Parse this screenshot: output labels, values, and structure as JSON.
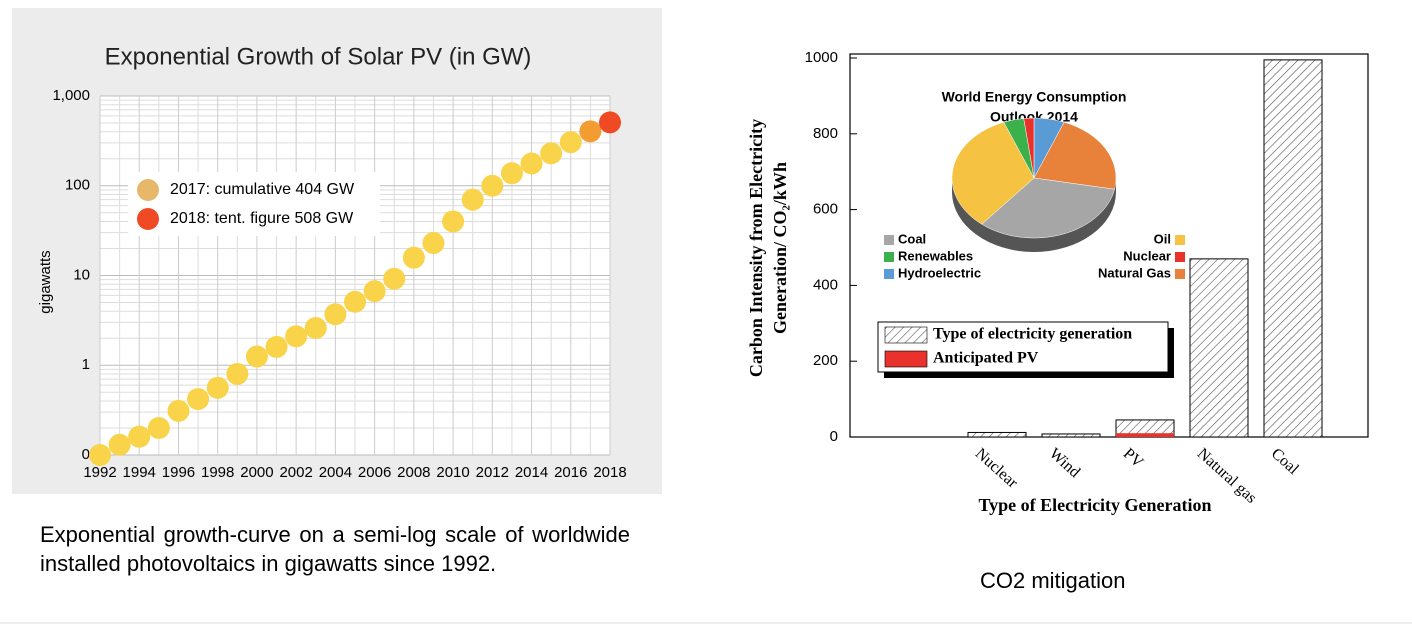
{
  "chart_data": [
    {
      "type": "scatter",
      "title": "Exponential Growth of Solar PV (in GW)",
      "ylabel": "gigawatts",
      "x": [
        1992,
        1993,
        1994,
        1995,
        1996,
        1997,
        1998,
        1999,
        2000,
        2001,
        2002,
        2003,
        2004,
        2005,
        2006,
        2007,
        2008,
        2009,
        2010,
        2011,
        2012,
        2013,
        2014,
        2015,
        2016,
        2017,
        2018
      ],
      "values": [
        0.1,
        0.13,
        0.16,
        0.2,
        0.31,
        0.42,
        0.56,
        0.8,
        1.25,
        1.6,
        2.1,
        2.6,
        3.7,
        5.1,
        6.7,
        9.2,
        15.8,
        23,
        40,
        70,
        100,
        138,
        177,
        230,
        306,
        404,
        508
      ],
      "point_colors": [
        "#f9d44a",
        "#f9d44a",
        "#f9d44a",
        "#f9d44a",
        "#f9d44a",
        "#f9d44a",
        "#f9d44a",
        "#f9d44a",
        "#f9d44a",
        "#f9d44a",
        "#f9d44a",
        "#f9d44a",
        "#f9d44a",
        "#f9d44a",
        "#f9d44a",
        "#f9d44a",
        "#f9d44a",
        "#f9d44a",
        "#f9d44a",
        "#f9d44a",
        "#f9d44a",
        "#f9d44a",
        "#f9d44a",
        "#f9d44a",
        "#f9d44a",
        "#f39c32",
        "#ef4a24"
      ],
      "legend": [
        {
          "label": "2017: cumulative 404 GW",
          "color": "#e8b86a"
        },
        {
          "label": "2018: tent. figure  508 GW",
          "color": "#ef4a24"
        }
      ],
      "xlim": [
        1992,
        2018
      ],
      "xticks": [
        1992,
        1994,
        1996,
        1998,
        2000,
        2002,
        2004,
        2006,
        2008,
        2010,
        2012,
        2014,
        2016,
        2018
      ],
      "ylim": [
        0.1,
        1000
      ],
      "log_y": true,
      "yticks": [
        {
          "value": 0.1,
          "label": "0"
        },
        1,
        10,
        100,
        {
          "value": 1000,
          "label": "1,000"
        }
      ],
      "grid": true
    },
    {
      "type": "bar",
      "ylabel": [
        "Carbon Intensity from Electricity",
        "Generation/ CO₂/kWh"
      ],
      "xlabel": "Type of Electricity Generation",
      "categories": [
        "Nuclear",
        "Wind",
        "PV",
        "Natural gas",
        "Coal"
      ],
      "series": [
        {
          "name": "Type of electricity generation",
          "color": "hatch",
          "values": [
            12,
            8,
            45,
            470,
            995
          ]
        },
        {
          "name": "Anticipated PV",
          "color": "#e8322b",
          "values": [
            null,
            null,
            10,
            null,
            null
          ]
        }
      ],
      "ylim": [
        0,
        1000
      ],
      "yticks": [
        0,
        200,
        400,
        600,
        800,
        1000
      ]
    },
    {
      "type": "pie",
      "title": [
        "World Energy Consumption",
        "Outlook 2014"
      ],
      "categories": [
        "Coal",
        "Renewables",
        "Hydroelectric",
        "Oil",
        "Nuclear",
        "Natural Gas"
      ],
      "values": [
        33,
        4,
        6,
        33,
        2,
        22
      ],
      "colors": [
        "#a6a6a6",
        "#3cb04a",
        "#5b9bd5",
        "#f5c242",
        "#e8322b",
        "#e8823a"
      ]
    }
  ],
  "captions": [
    "Exponential growth-curve on a semi-log scale of worldwide installed photovoltaics in gigawatts since 1992.",
    "CO2 mitigation"
  ]
}
